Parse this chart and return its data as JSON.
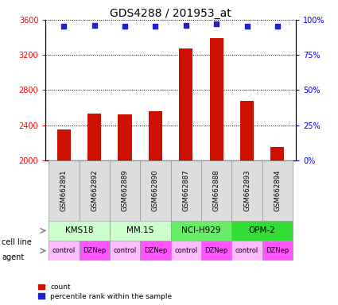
{
  "title": "GDS4288 / 201953_at",
  "samples": [
    "GSM662891",
    "GSM662892",
    "GSM662889",
    "GSM662890",
    "GSM662887",
    "GSM662888",
    "GSM662893",
    "GSM662894"
  ],
  "counts": [
    2355,
    2530,
    2520,
    2560,
    3270,
    3390,
    2680,
    2155
  ],
  "percentiles": [
    95.5,
    95.8,
    95.7,
    95.7,
    96.2,
    97.0,
    95.6,
    95.2
  ],
  "cell_lines": [
    "KMS18",
    "MM.1S",
    "NCI-H929",
    "OPM-2"
  ],
  "cell_line_spans": [
    [
      0,
      2
    ],
    [
      2,
      4
    ],
    [
      4,
      6
    ],
    [
      6,
      8
    ]
  ],
  "cell_line_colors": [
    "#ccffcc",
    "#ccffcc",
    "#66ee66",
    "#33dd33"
  ],
  "agents": [
    "control",
    "DZNep",
    "control",
    "DZNep",
    "control",
    "DZNep",
    "control",
    "DZNep"
  ],
  "control_color": "#ffbbff",
  "dznep_color": "#ff55ff",
  "bar_color": "#cc1100",
  "dot_color": "#2222cc",
  "ylim_left": [
    2000,
    3600
  ],
  "yticks_left": [
    2000,
    2400,
    2800,
    3200,
    3600
  ],
  "ylim_right": [
    0,
    100
  ],
  "yticks_right": [
    0,
    25,
    50,
    75,
    100
  ],
  "yticklabels_right": [
    "0%",
    "25%",
    "50%",
    "75%",
    "100%"
  ],
  "background_color": "#ffffff",
  "title_fontsize": 10,
  "tick_fontsize": 7,
  "bar_width": 0.45
}
